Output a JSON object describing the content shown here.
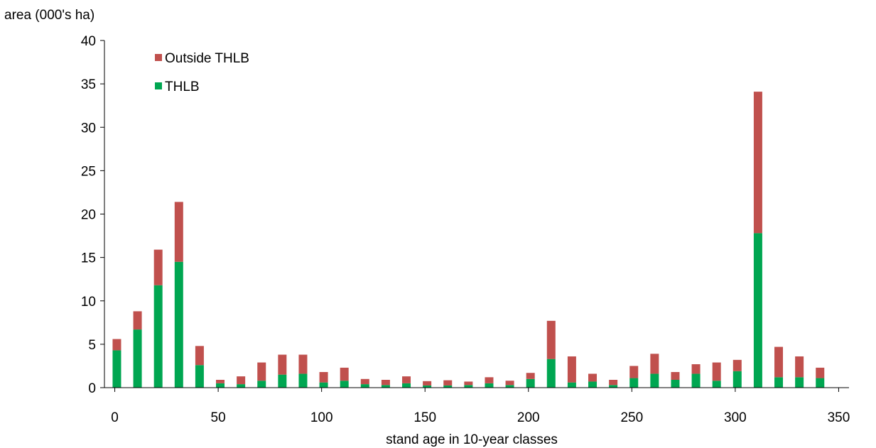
{
  "chart_data": {
    "type": "bar",
    "stacked": true,
    "title": "",
    "xlabel": "stand age in 10-year classes",
    "ylabel": "area (000's ha)",
    "xlim": [
      -5,
      355
    ],
    "ylim": [
      0,
      40
    ],
    "xticks": [
      0,
      50,
      100,
      150,
      200,
      250,
      300,
      350
    ],
    "yticks": [
      0,
      5,
      10,
      15,
      20,
      25,
      30,
      35,
      40
    ],
    "grid": false,
    "legend_position": "top-left",
    "categories": [
      1,
      11,
      21,
      31,
      41,
      51,
      61,
      71,
      81,
      91,
      101,
      111,
      121,
      131,
      141,
      151,
      161,
      171,
      181,
      191,
      201,
      211,
      221,
      231,
      241,
      251,
      261,
      271,
      281,
      291,
      301,
      311,
      321,
      331,
      341
    ],
    "series": [
      {
        "name": "THLB",
        "color": "#00A651",
        "values": [
          4.3,
          6.7,
          11.8,
          14.5,
          2.6,
          0.5,
          0.4,
          0.8,
          1.5,
          1.6,
          0.6,
          0.8,
          0.4,
          0.3,
          0.5,
          0.25,
          0.25,
          0.3,
          0.5,
          0.3,
          1.0,
          3.3,
          0.6,
          0.7,
          0.3,
          1.1,
          1.6,
          0.9,
          1.6,
          0.8,
          1.9,
          17.8,
          1.2,
          1.2,
          1.1
        ]
      },
      {
        "name": "Outside THLB",
        "color": "#C0504D",
        "values": [
          1.3,
          2.1,
          4.1,
          6.9,
          2.2,
          0.4,
          0.9,
          2.1,
          2.3,
          2.2,
          1.2,
          1.5,
          0.6,
          0.6,
          0.8,
          0.5,
          0.6,
          0.4,
          0.7,
          0.5,
          0.7,
          4.4,
          3.0,
          0.9,
          0.6,
          1.4,
          2.3,
          0.9,
          1.1,
          2.1,
          1.3,
          16.3,
          3.5,
          2.4,
          1.2
        ]
      }
    ]
  }
}
